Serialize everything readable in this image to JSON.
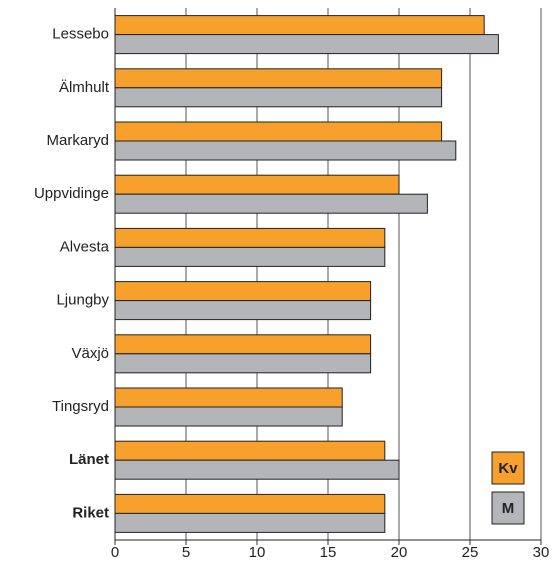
{
  "chart_data": {
    "type": "hbar",
    "categories": [
      "Lessebo",
      "Älmhult",
      "Markaryd",
      "Uppvidinge",
      "Alvesta",
      "Ljungby",
      "Växjö",
      "Tingsryd",
      "Länet",
      "Riket"
    ],
    "series": [
      {
        "name": "Kv",
        "color": "#f7a12c",
        "values": [
          26,
          23,
          23,
          20,
          19,
          18,
          18,
          16,
          19,
          19
        ]
      },
      {
        "name": "M",
        "color": "#b4b5b9",
        "values": [
          27,
          23,
          24,
          22,
          19,
          18,
          18,
          16,
          20,
          19
        ]
      }
    ],
    "xlim": [
      0,
      30
    ],
    "xticks": [
      0,
      5,
      10,
      15,
      20,
      25,
      30
    ],
    "grid": true,
    "legend": "lower right"
  }
}
